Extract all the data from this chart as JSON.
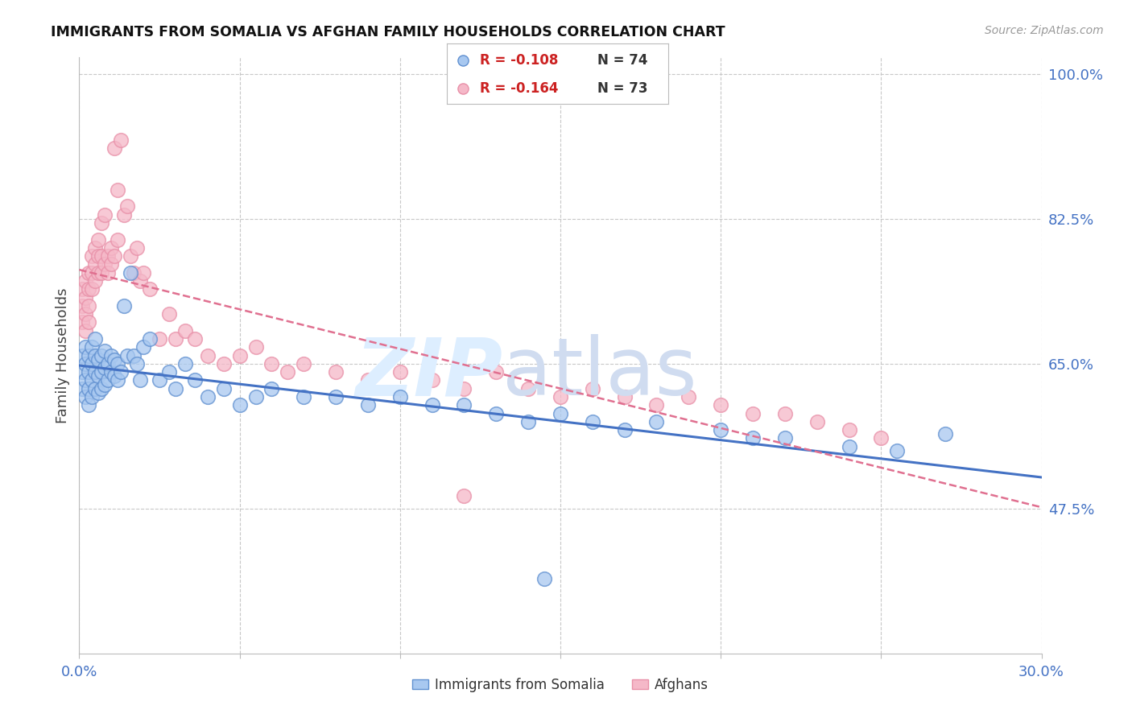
{
  "title": "IMMIGRANTS FROM SOMALIA VS AFGHAN FAMILY HOUSEHOLDS CORRELATION CHART",
  "source": "Source: ZipAtlas.com",
  "ylabel_label": "Family Households",
  "x_min": 0.0,
  "x_max": 0.3,
  "y_min": 0.3,
  "y_max": 1.02,
  "x_ticks": [
    0.0,
    0.05,
    0.1,
    0.15,
    0.2,
    0.25,
    0.3
  ],
  "x_tick_labels": [
    "0.0%",
    "",
    "",
    "",
    "",
    "",
    "30.0%"
  ],
  "y_tick_labels": [
    "100.0%",
    "82.5%",
    "65.0%",
    "47.5%"
  ],
  "y_tick_values": [
    1.0,
    0.825,
    0.65,
    0.475
  ],
  "color_somalia": "#A8C8F0",
  "color_afghan": "#F5B8C8",
  "color_somalia_line": "#4472C4",
  "color_afghan_line": "#E07090",
  "legend_r_somalia": "R = -0.108",
  "legend_n_somalia": "N = 74",
  "legend_r_afghan": "R = -0.164",
  "legend_n_afghan": "N = 73",
  "somalia_scatter_x": [
    0.001,
    0.001,
    0.001,
    0.002,
    0.002,
    0.002,
    0.002,
    0.003,
    0.003,
    0.003,
    0.003,
    0.004,
    0.004,
    0.004,
    0.004,
    0.005,
    0.005,
    0.005,
    0.005,
    0.006,
    0.006,
    0.006,
    0.007,
    0.007,
    0.007,
    0.008,
    0.008,
    0.008,
    0.009,
    0.009,
    0.01,
    0.01,
    0.011,
    0.011,
    0.012,
    0.012,
    0.013,
    0.014,
    0.015,
    0.016,
    0.017,
    0.018,
    0.019,
    0.02,
    0.022,
    0.025,
    0.028,
    0.03,
    0.033,
    0.036,
    0.04,
    0.045,
    0.05,
    0.055,
    0.06,
    0.07,
    0.08,
    0.09,
    0.1,
    0.11,
    0.12,
    0.13,
    0.14,
    0.15,
    0.16,
    0.17,
    0.18,
    0.2,
    0.21,
    0.22,
    0.24,
    0.255,
    0.27,
    0.145
  ],
  "somalia_scatter_y": [
    0.62,
    0.64,
    0.66,
    0.63,
    0.65,
    0.67,
    0.61,
    0.64,
    0.66,
    0.62,
    0.6,
    0.65,
    0.67,
    0.63,
    0.61,
    0.66,
    0.64,
    0.62,
    0.68,
    0.655,
    0.635,
    0.615,
    0.66,
    0.64,
    0.62,
    0.665,
    0.645,
    0.625,
    0.65,
    0.63,
    0.66,
    0.64,
    0.655,
    0.635,
    0.65,
    0.63,
    0.64,
    0.72,
    0.66,
    0.76,
    0.66,
    0.65,
    0.63,
    0.67,
    0.68,
    0.63,
    0.64,
    0.62,
    0.65,
    0.63,
    0.61,
    0.62,
    0.6,
    0.61,
    0.62,
    0.61,
    0.61,
    0.6,
    0.61,
    0.6,
    0.6,
    0.59,
    0.58,
    0.59,
    0.58,
    0.57,
    0.58,
    0.57,
    0.56,
    0.56,
    0.55,
    0.545,
    0.565,
    0.39
  ],
  "afghan_scatter_x": [
    0.001,
    0.001,
    0.001,
    0.002,
    0.002,
    0.002,
    0.002,
    0.003,
    0.003,
    0.003,
    0.003,
    0.004,
    0.004,
    0.004,
    0.005,
    0.005,
    0.005,
    0.006,
    0.006,
    0.006,
    0.007,
    0.007,
    0.007,
    0.008,
    0.008,
    0.009,
    0.009,
    0.01,
    0.01,
    0.011,
    0.011,
    0.012,
    0.012,
    0.013,
    0.014,
    0.015,
    0.016,
    0.017,
    0.018,
    0.019,
    0.02,
    0.022,
    0.025,
    0.028,
    0.03,
    0.033,
    0.036,
    0.04,
    0.045,
    0.05,
    0.055,
    0.06,
    0.065,
    0.07,
    0.08,
    0.09,
    0.1,
    0.11,
    0.12,
    0.13,
    0.14,
    0.15,
    0.16,
    0.17,
    0.18,
    0.19,
    0.2,
    0.21,
    0.22,
    0.23,
    0.24,
    0.25,
    0.12
  ],
  "afghan_scatter_y": [
    0.7,
    0.72,
    0.74,
    0.71,
    0.73,
    0.75,
    0.69,
    0.72,
    0.74,
    0.7,
    0.76,
    0.74,
    0.76,
    0.78,
    0.75,
    0.77,
    0.79,
    0.76,
    0.78,
    0.8,
    0.76,
    0.78,
    0.82,
    0.77,
    0.83,
    0.78,
    0.76,
    0.79,
    0.77,
    0.78,
    0.91,
    0.8,
    0.86,
    0.92,
    0.83,
    0.84,
    0.78,
    0.76,
    0.79,
    0.75,
    0.76,
    0.74,
    0.68,
    0.71,
    0.68,
    0.69,
    0.68,
    0.66,
    0.65,
    0.66,
    0.67,
    0.65,
    0.64,
    0.65,
    0.64,
    0.63,
    0.64,
    0.63,
    0.62,
    0.64,
    0.62,
    0.61,
    0.62,
    0.61,
    0.6,
    0.61,
    0.6,
    0.59,
    0.59,
    0.58,
    0.57,
    0.56,
    0.49
  ]
}
